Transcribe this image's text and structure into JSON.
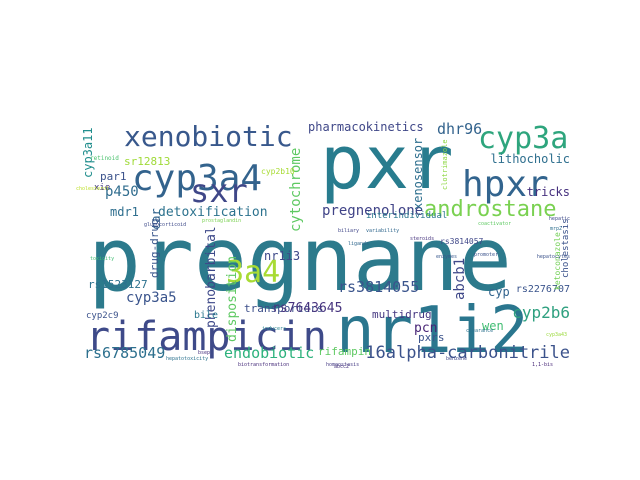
{
  "word_cloud": {
    "words": [
      {
        "text": "pregnane",
        "color": "#2c7a8c"
      },
      {
        "text": "pxr",
        "color": "#287c8e"
      },
      {
        "text": "nr1i2",
        "color": "#2a768e"
      },
      {
        "text": "rifampicin",
        "color": "#3e4a89"
      },
      {
        "text": "cyp3a4",
        "color": "#33638d"
      },
      {
        "text": "xenobiotic",
        "color": "#38588c"
      },
      {
        "text": "sxr",
        "color": "#3f4788"
      },
      {
        "text": "hpxr",
        "color": "#32648e"
      },
      {
        "text": "cyp3a",
        "color": "#2ea57d"
      },
      {
        "text": "3a4",
        "color": "#a8db34"
      },
      {
        "text": "androstane",
        "color": "#7ad151"
      },
      {
        "text": "pregnenolone",
        "color": "#404387"
      },
      {
        "text": "16alpha-carbonitrile",
        "color": "#3b528b"
      },
      {
        "text": "endobiotic",
        "color": "#2db27d"
      },
      {
        "text": "cyp3a5",
        "color": "#3a548c"
      },
      {
        "text": "rs3814055",
        "color": "#3a548c"
      },
      {
        "text": "rs6785049",
        "color": "#2d708e"
      },
      {
        "text": "detoxification",
        "color": "#2c728e"
      },
      {
        "text": "cytochrome",
        "color": "#5ec962"
      },
      {
        "text": "phenobarbital",
        "color": "#3e4989"
      },
      {
        "text": "disposition",
        "color": "#5ec962"
      },
      {
        "text": "cyp2b6",
        "color": "#2ea07f"
      },
      {
        "text": "abcb1",
        "color": "#3f4889"
      },
      {
        "text": "xenosensor",
        "color": "#2e6f8e"
      },
      {
        "text": "dhr96",
        "color": "#33638d"
      },
      {
        "text": "lithocholic",
        "color": "#2e6f8e"
      },
      {
        "text": "pharmacokinetics",
        "color": "#3f4788"
      },
      {
        "text": "p450",
        "color": "#2f6c8e"
      },
      {
        "text": "mdr1",
        "color": "#2e6e8e"
      },
      {
        "text": "par1",
        "color": "#3b528b"
      },
      {
        "text": "sr12813",
        "color": "#a0da39"
      },
      {
        "text": "cyp3a11",
        "color": "#218e8d"
      },
      {
        "text": "car",
        "color": "#32648e"
      },
      {
        "text": "drug-drug",
        "color": "#39568c"
      },
      {
        "text": "rs1523127",
        "color": "#2c718e"
      },
      {
        "text": "transporters",
        "color": "#3c4f8a"
      },
      {
        "text": "rs7643645",
        "color": "#46337e"
      },
      {
        "text": "nr1i3",
        "color": "#3e4989"
      },
      {
        "text": "rifampin",
        "color": "#5ec962"
      },
      {
        "text": "pcn",
        "color": "#482576"
      },
      {
        "text": "pxrs",
        "color": "#3b528b"
      },
      {
        "text": "wen",
        "color": "#40bd72"
      },
      {
        "text": "multidrug",
        "color": "#453781"
      },
      {
        "text": "cyp",
        "color": "#32648e"
      },
      {
        "text": "rs2276707",
        "color": "#3a548c"
      },
      {
        "text": "tricks",
        "color": "#46307e"
      },
      {
        "text": "rs3814057",
        "color": "#3f4788"
      },
      {
        "text": "interindividual",
        "color": "#2a778e"
      },
      {
        "text": "cholestasis",
        "color": "#3b528b"
      },
      {
        "text": "ketoconazole",
        "color": "#73d056"
      },
      {
        "text": "bile",
        "color": "#2a788e"
      },
      {
        "text": "cyp2c9",
        "color": "#3b528b"
      },
      {
        "text": "clotrimazole",
        "color": "#8fd744"
      },
      {
        "text": "retinoid",
        "color": "#4ac16d"
      },
      {
        "text": "xie",
        "color": "#453781"
      },
      {
        "text": "cyp2b10",
        "color": "#a8db34"
      },
      {
        "text": "biliary",
        "color": "#404688"
      },
      {
        "text": "variability",
        "color": "#31688e"
      },
      {
        "text": "hepatocytes",
        "color": "#3b528b"
      },
      {
        "text": "cholesterol",
        "color": "#bddf26"
      },
      {
        "text": "hepatic",
        "color": "#3e4a89"
      },
      {
        "text": "inducers",
        "color": "#26828e"
      },
      {
        "text": "biotransformation",
        "color": "#472d7b"
      },
      {
        "text": "homeostasis",
        "color": "#443a83"
      },
      {
        "text": "hepatotoxicity",
        "color": "#2c728e"
      },
      {
        "text": "coactivator",
        "color": "#5ec962"
      },
      {
        "text": "ligands",
        "color": "#31688e"
      },
      {
        "text": "steroids",
        "color": "#46337e"
      },
      {
        "text": "benzene",
        "color": "#3f4788"
      },
      {
        "text": "toxicity",
        "color": "#40bd72"
      },
      {
        "text": "enzymes",
        "color": "#38588c"
      },
      {
        "text": "bsep",
        "color": "#46307e"
      },
      {
        "text": "mrp2",
        "color": "#2e6f8e"
      },
      {
        "text": "glucocorticoid",
        "color": "#3e4a89"
      },
      {
        "text": "prostaglandin",
        "color": "#7ad151"
      },
      {
        "text": "abcc2",
        "color": "#46337e"
      },
      {
        "text": "promoter",
        "color": "#3b528b"
      },
      {
        "text": "clearance",
        "color": "#2c728e"
      },
      {
        "text": "1,1-bis",
        "color": "#482878"
      },
      {
        "text": "cyp3a43",
        "color": "#9bd93c"
      }
    ]
  }
}
